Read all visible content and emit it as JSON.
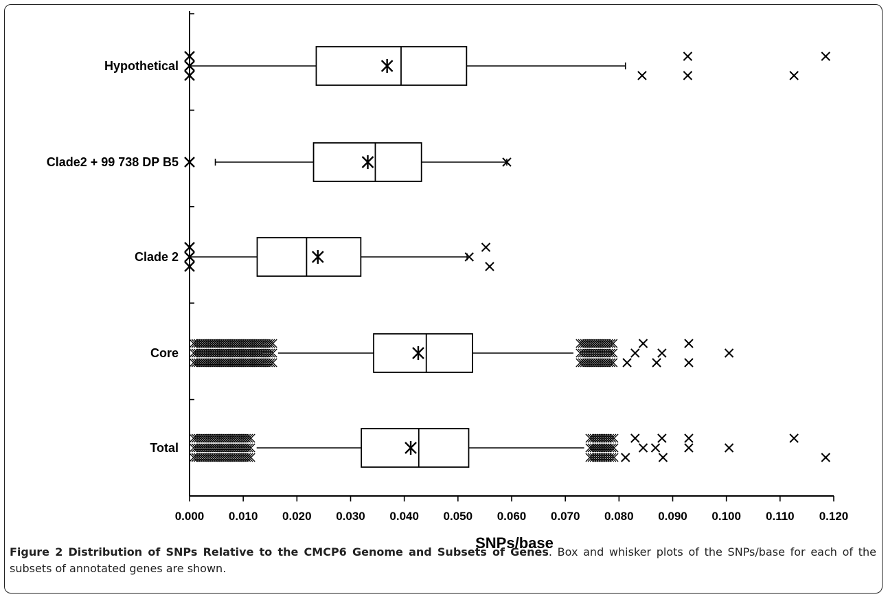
{
  "chart_data": {
    "type": "boxplot",
    "orientation": "horizontal",
    "xlabel": "SNPs/base",
    "ylabel": "",
    "xlim": [
      0,
      0.12
    ],
    "xticks": [
      "0.000",
      "0.010",
      "0.020",
      "0.030",
      "0.040",
      "0.050",
      "0.060",
      "0.070",
      "0.080",
      "0.090",
      "0.100",
      "0.110",
      "0.120"
    ],
    "grid": false,
    "legend": "none",
    "categories": [
      "Hypothetical",
      "Clade2 + 99 738 DP B5",
      "Clade 2",
      "Core",
      "Total"
    ],
    "boxes": [
      {
        "label": "Hypothetical",
        "whisker_low": 0.0,
        "q1": 0.0236,
        "median": 0.0394,
        "q3": 0.0516,
        "whisker_high": 0.0812,
        "mean": 0.0368,
        "outliers": [
          [
            0.0843,
            -1
          ],
          [
            0.0928,
            1
          ],
          [
            0.0928,
            -1
          ],
          [
            0.1126,
            -1
          ],
          [
            0.1185,
            1
          ]
        ],
        "low_marks": [
          [
            0.0,
            1
          ],
          [
            0.0,
            0
          ],
          [
            0.0,
            -1
          ]
        ]
      },
      {
        "label": "Clade2 + 99 738 DP B5",
        "whisker_low": 0.0048,
        "q1": 0.0231,
        "median": 0.0346,
        "q3": 0.0432,
        "whisker_high": 0.0591,
        "mean": 0.0332,
        "outliers": [
          [
            0.0591,
            0
          ]
        ],
        "low_marks": [
          [
            0.0,
            0
          ]
        ]
      },
      {
        "label": "Clade 2",
        "whisker_low": 0.0,
        "q1": 0.0126,
        "median": 0.0218,
        "q3": 0.0319,
        "whisker_high": 0.0517,
        "mean": 0.0239,
        "outliers": [
          [
            0.0521,
            0
          ],
          [
            0.0552,
            1
          ],
          [
            0.0559,
            -1
          ]
        ],
        "low_marks": [
          [
            0.0,
            1
          ],
          [
            0.0,
            0
          ],
          [
            0.0,
            -1
          ]
        ]
      },
      {
        "label": "Core",
        "whisker_low": 0.0165,
        "q1": 0.0343,
        "median": 0.0441,
        "q3": 0.0527,
        "whisker_high": 0.0715,
        "mean": 0.0426,
        "outliers": [
          [
            0.0815,
            -1
          ],
          [
            0.083,
            0
          ],
          [
            0.0845,
            1
          ],
          [
            0.087,
            -1
          ],
          [
            0.088,
            0
          ],
          [
            0.093,
            1
          ],
          [
            0.093,
            -1
          ],
          [
            0.1005,
            0
          ]
        ],
        "dense_low": [
          0.0,
          0.0165
        ],
        "dense_high": [
          0.072,
          0.08
        ]
      },
      {
        "label": "Total",
        "whisker_low": 0.0125,
        "q1": 0.032,
        "median": 0.0427,
        "q3": 0.052,
        "whisker_high": 0.0735,
        "mean": 0.0412,
        "outliers": [
          [
            0.0812,
            -1
          ],
          [
            0.083,
            1
          ],
          [
            0.0845,
            0
          ],
          [
            0.0868,
            0
          ],
          [
            0.088,
            1
          ],
          [
            0.0882,
            -1
          ],
          [
            0.093,
            1
          ],
          [
            0.093,
            0
          ],
          [
            0.1005,
            0
          ],
          [
            0.1126,
            1
          ],
          [
            0.1185,
            -1
          ]
        ],
        "dense_low": [
          0.0,
          0.0125
        ],
        "dense_high": [
          0.0738,
          0.08
        ]
      }
    ]
  },
  "caption": {
    "bold": "Figure 2 Distribution of SNPs Relative to the CMCP6 Genome and Subsets of Genes",
    "text": ". Box and whisker plots of the SNPs/base for each of the subsets of annotated genes are shown."
  }
}
